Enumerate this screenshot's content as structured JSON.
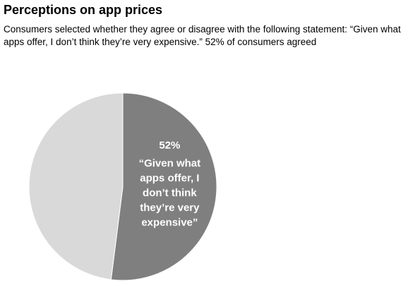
{
  "header": {
    "title": "Perceptions on app prices",
    "subtitle": "Consumers selected whether they agree or disagree with the following statement: “Given what apps offer, I don’t think they’re very expensive.”  52% of consumers agreed"
  },
  "chart_data": {
    "type": "pie",
    "title": "Perceptions on app prices",
    "slices": [
      {
        "value": 52,
        "value_label": "52%",
        "label_lines": [
          "“Given what",
          "apps offer, I",
          "don’t think",
          "they’re very",
          "expensive”"
        ],
        "color": "#7f7f7f"
      },
      {
        "value": 48,
        "color": "#d9d9d9"
      }
    ],
    "legend": "none"
  }
}
